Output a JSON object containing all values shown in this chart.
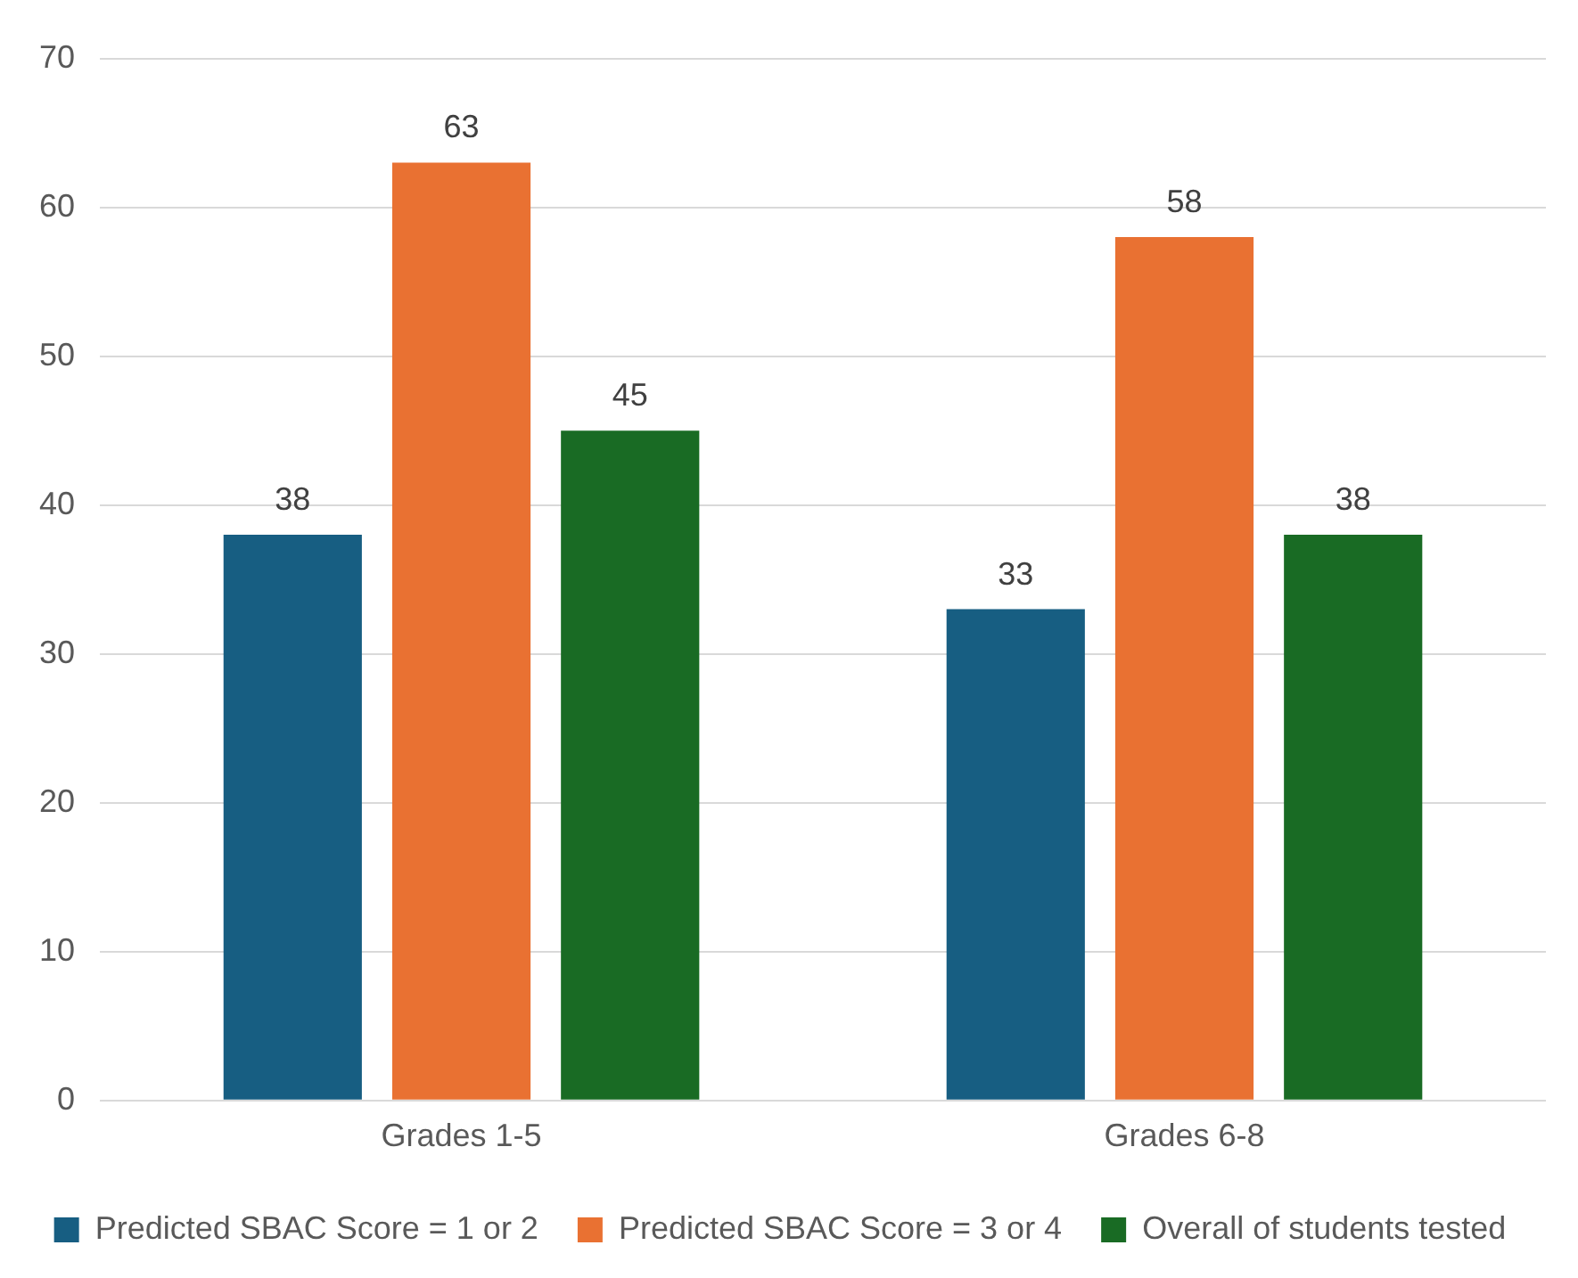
{
  "chart_data": {
    "type": "bar",
    "categories": [
      "Grades 1-5",
      "Grades 6-8"
    ],
    "series": [
      {
        "name": "Predicted SBAC Score = 1 or 2",
        "color": "#175e82",
        "values": [
          38,
          33
        ]
      },
      {
        "name": "Predicted SBAC Score = 3 or 4",
        "color": "#e97132",
        "values": [
          63,
          58
        ]
      },
      {
        "name": "Overall of students tested",
        "color": "#196b24",
        "values": [
          45,
          38
        ]
      }
    ],
    "ylim": [
      0,
      70
    ],
    "yticks": [
      0,
      10,
      20,
      30,
      40,
      50,
      60,
      70
    ],
    "grid": "y",
    "legend": "bottom",
    "data_labels": true
  }
}
